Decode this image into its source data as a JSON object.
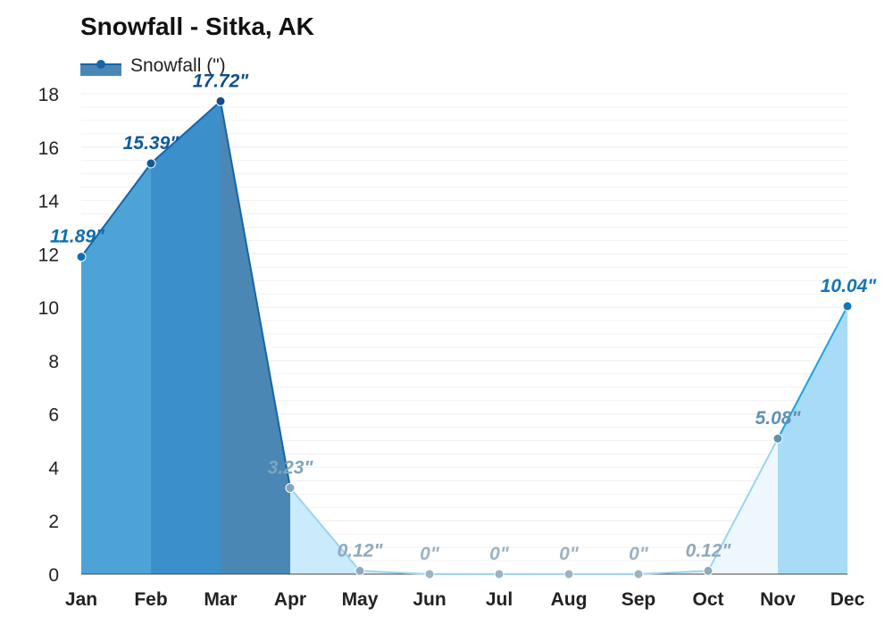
{
  "chart_data": {
    "type": "area",
    "title": "Snowfall - Sitka, AK",
    "categories": [
      "Jan",
      "Feb",
      "Mar",
      "Apr",
      "May",
      "Jun",
      "Jul",
      "Aug",
      "Sep",
      "Oct",
      "Nov",
      "Dec"
    ],
    "series": [
      {
        "name": "Snowfall (\")",
        "values": [
          11.89,
          15.39,
          17.72,
          3.23,
          0.12,
          0,
          0,
          0,
          0,
          0.12,
          5.08,
          10.04
        ],
        "data_labels": [
          "11.89\"",
          "15.39\"",
          "17.72\"",
          "3.23\"",
          "0.12\"",
          "0\"",
          "0\"",
          "0\"",
          "0\"",
          "0.12\"",
          "5.08\"",
          "10.04\""
        ]
      }
    ],
    "ylim": [
      0,
      18
    ],
    "yticks": [
      "0",
      "2",
      "4",
      "6",
      "8",
      "10",
      "12",
      "14",
      "16",
      "18"
    ],
    "xlabel": "",
    "ylabel": "",
    "grid": true,
    "legend_position": "top-left",
    "colors": {
      "line_dark": "#1565a8",
      "line_light": "#1aa3e8",
      "grid": "#e5e5e5",
      "fill_scale": [
        "#4da3d6",
        "#3b8fcb",
        "#4a87b4",
        "#c9ebfc",
        "#eef7fd",
        "#f7fbfe",
        "#f7fbfe",
        "#f7fbfe",
        "#f7fbfe",
        "#eef7fd",
        "#a8dcf6",
        "#4fc3f7"
      ],
      "label_scale": [
        "#0e6fb0",
        "#0e5a9a",
        "#0e4f8a",
        "#7fa5bd",
        "#8fa9bc",
        "#9db2c2",
        "#9db2c2",
        "#9db2c2",
        "#9db2c2",
        "#8fa9bc",
        "#5b93b4",
        "#1475b8"
      ]
    }
  }
}
